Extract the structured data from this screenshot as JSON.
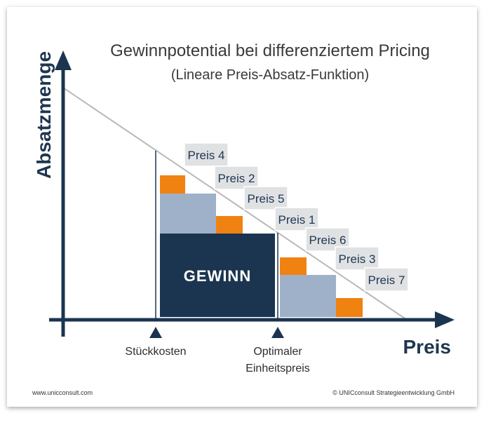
{
  "title": "Gewinnpotential bei differenziertem Pricing",
  "subtitle": "(Lineare Preis-Absatz-Funktion)",
  "axes": {
    "y_label": "Absatzmenge",
    "x_label": "Preis"
  },
  "markers": {
    "unit_cost": "Stückkosten",
    "optimal_price_line1": "Optimaler",
    "optimal_price_line2": "Einheitspreis"
  },
  "profit_label": "GEWINN",
  "price_tags": [
    "Preis 4",
    "Preis 2",
    "Preis 5",
    "Preis 1",
    "Preis 6",
    "Preis 3",
    "Preis 7"
  ],
  "footer": {
    "website": "www.unicconsult.com",
    "copyright": "© UNICconsult Strategieentwicklung GmbH"
  },
  "colors": {
    "navy": "#1b3550",
    "light_blue": "#9fb1c9",
    "orange": "#f08212",
    "tag_fill": "#dfe1e3",
    "demand_line": "#b9b9b9"
  }
}
